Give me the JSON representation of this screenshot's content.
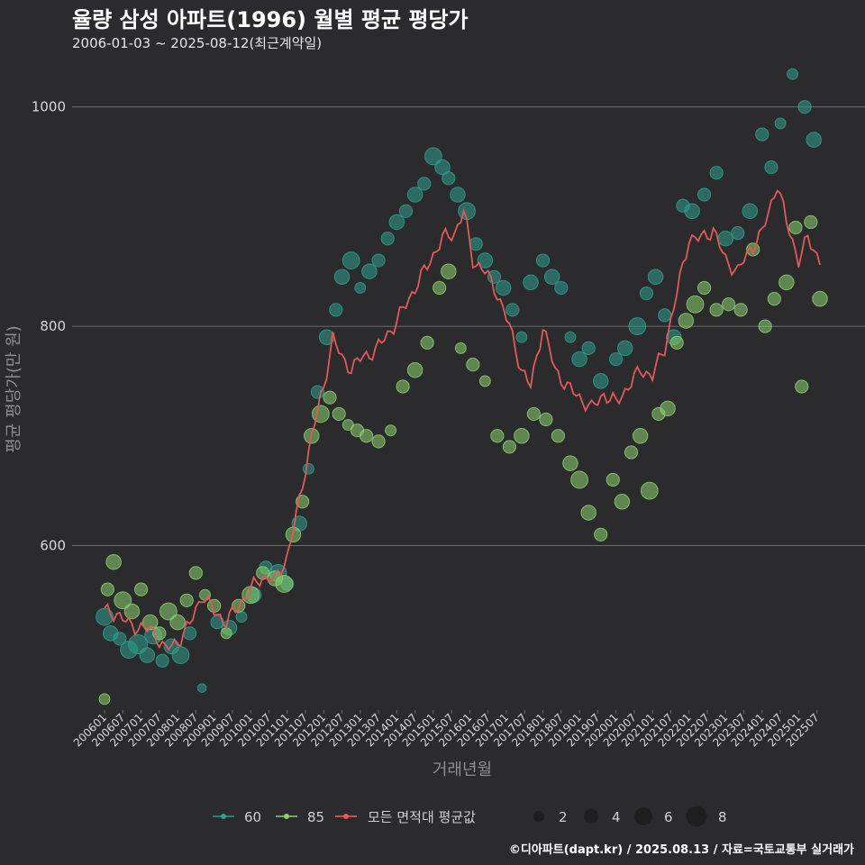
{
  "title": "율량 삼성 아파트(1996) 월별 평균 평당가",
  "subtitle": "2006-01-03 ~ 2025-08-12(최근계약일)",
  "caption": "©디아파트(dapt.kr) / 2025.08.13 / 자료=국토교통부 실거래가",
  "colors": {
    "background": "#2b2b2d",
    "grid": "#6b6b6b",
    "series_60": "#2e9e8e",
    "series_85": "#8ccf6e",
    "avg_line": "#e05a5a",
    "size_legend": "#1e1e1e"
  },
  "chart_data": {
    "type": "scatter",
    "xlabel": "거래년월",
    "ylabel": "평균 평당가(만 원)",
    "ylim": [
      450,
      1040
    ],
    "yticks": [
      600,
      800,
      1000
    ],
    "x_range": [
      "2006-01",
      "2025-08"
    ],
    "xticks": [
      "200601",
      "200607",
      "200701",
      "200707",
      "200801",
      "200807",
      "200901",
      "200907",
      "201001",
      "201007",
      "201101",
      "201107",
      "201201",
      "201207",
      "201301",
      "201307",
      "201401",
      "201407",
      "201501",
      "201507",
      "201601",
      "201607",
      "201701",
      "201707",
      "201801",
      "201807",
      "201901",
      "201907",
      "202001",
      "202007",
      "202101",
      "202107",
      "202201",
      "202207",
      "202301",
      "202307",
      "202401",
      "202407",
      "202501",
      "202507"
    ],
    "grid": true,
    "legend_position": "bottom",
    "legend": {
      "series_labels": [
        "60",
        "85",
        "모든 면적대 평균값"
      ],
      "size_labels": [
        "2",
        "4",
        "6",
        "8"
      ]
    },
    "avg_keypoints": [
      [
        "2006-01",
        540
      ],
      [
        "2006-05",
        538
      ],
      [
        "2006-09",
        528
      ],
      [
        "2007-01",
        525
      ],
      [
        "2007-05",
        522
      ],
      [
        "2007-09",
        505
      ],
      [
        "2008-01",
        512
      ],
      [
        "2008-05",
        528
      ],
      [
        "2008-09",
        555
      ],
      [
        "2009-01",
        540
      ],
      [
        "2009-05",
        530
      ],
      [
        "2009-09",
        545
      ],
      [
        "2010-01",
        560
      ],
      [
        "2010-05",
        572
      ],
      [
        "2010-09",
        568
      ],
      [
        "2011-01",
        590
      ],
      [
        "2011-05",
        640
      ],
      [
        "2011-09",
        700
      ],
      [
        "2012-01",
        745
      ],
      [
        "2012-04",
        790
      ],
      [
        "2012-07",
        770
      ],
      [
        "2012-10",
        762
      ],
      [
        "2013-01",
        770
      ],
      [
        "2013-06",
        778
      ],
      [
        "2013-12",
        800
      ],
      [
        "2014-06",
        830
      ],
      [
        "2014-12",
        860
      ],
      [
        "2015-04",
        880
      ],
      [
        "2015-08",
        885
      ],
      [
        "2015-11",
        905
      ],
      [
        "2016-02",
        860
      ],
      [
        "2016-06",
        850
      ],
      [
        "2016-10",
        830
      ],
      [
        "2017-02",
        800
      ],
      [
        "2017-06",
        760
      ],
      [
        "2017-09",
        745
      ],
      [
        "2018-01",
        800
      ],
      [
        "2018-05",
        760
      ],
      [
        "2018-09",
        745
      ],
      [
        "2019-01",
        735
      ],
      [
        "2019-05",
        725
      ],
      [
        "2019-09",
        738
      ],
      [
        "2020-01",
        730
      ],
      [
        "2020-05",
        745
      ],
      [
        "2020-09",
        760
      ],
      [
        "2021-01",
        755
      ],
      [
        "2021-05",
        780
      ],
      [
        "2021-09",
        830
      ],
      [
        "2022-01",
        880
      ],
      [
        "2022-05",
        880
      ],
      [
        "2022-09",
        888
      ],
      [
        "2023-01",
        860
      ],
      [
        "2023-05",
        850
      ],
      [
        "2023-09",
        870
      ],
      [
        "2024-01",
        885
      ],
      [
        "2024-06",
        930
      ],
      [
        "2024-09",
        895
      ],
      [
        "2025-01",
        860
      ],
      [
        "2025-04",
        880
      ],
      [
        "2025-08",
        860
      ]
    ],
    "series": [
      {
        "name": "60",
        "points": [
          [
            "2006-01",
            535,
            6
          ],
          [
            "2006-03",
            520,
            5
          ],
          [
            "2006-06",
            515,
            4
          ],
          [
            "2006-09",
            505,
            6
          ],
          [
            "2006-12",
            510,
            7
          ],
          [
            "2007-03",
            500,
            5
          ],
          [
            "2007-05",
            518,
            6
          ],
          [
            "2007-08",
            495,
            4
          ],
          [
            "2007-11",
            508,
            5
          ],
          [
            "2008-02",
            500,
            6
          ],
          [
            "2008-05",
            520,
            4
          ],
          [
            "2008-09",
            470,
            2
          ],
          [
            "2009-02",
            530,
            4
          ],
          [
            "2009-06",
            525,
            5
          ],
          [
            "2009-10",
            535,
            3
          ],
          [
            "2010-02",
            555,
            5
          ],
          [
            "2010-06",
            580,
            4
          ],
          [
            "2010-10",
            575,
            6
          ],
          [
            "2011-01",
            565,
            4
          ],
          [
            "2011-05",
            620,
            5
          ],
          [
            "2011-08",
            670,
            3
          ],
          [
            "2011-11",
            740,
            4
          ],
          [
            "2012-02",
            790,
            5
          ],
          [
            "2012-05",
            815,
            4
          ],
          [
            "2012-07",
            845,
            5
          ],
          [
            "2012-10",
            860,
            6
          ],
          [
            "2013-01",
            835,
            3
          ],
          [
            "2013-04",
            850,
            5
          ],
          [
            "2013-07",
            860,
            4
          ],
          [
            "2013-10",
            880,
            4
          ],
          [
            "2014-01",
            895,
            5
          ],
          [
            "2014-04",
            905,
            4
          ],
          [
            "2014-07",
            920,
            5
          ],
          [
            "2014-10",
            930,
            4
          ],
          [
            "2015-01",
            955,
            6
          ],
          [
            "2015-04",
            945,
            5
          ],
          [
            "2015-06",
            935,
            4
          ],
          [
            "2015-09",
            920,
            5
          ],
          [
            "2015-12",
            905,
            6
          ],
          [
            "2016-03",
            875,
            4
          ],
          [
            "2016-06",
            860,
            5
          ],
          [
            "2016-09",
            845,
            4
          ],
          [
            "2016-12",
            835,
            5
          ],
          [
            "2017-03",
            815,
            4
          ],
          [
            "2017-06",
            790,
            3
          ],
          [
            "2017-09",
            840,
            5
          ],
          [
            "2018-01",
            860,
            4
          ],
          [
            "2018-04",
            845,
            5
          ],
          [
            "2018-07",
            835,
            4
          ],
          [
            "2018-10",
            790,
            3
          ],
          [
            "2019-01",
            770,
            5
          ],
          [
            "2019-04",
            780,
            4
          ],
          [
            "2019-08",
            750,
            5
          ],
          [
            "2020-01",
            770,
            4
          ],
          [
            "2020-04",
            780,
            5
          ],
          [
            "2020-08",
            800,
            6
          ],
          [
            "2020-11",
            830,
            4
          ],
          [
            "2021-02",
            845,
            5
          ],
          [
            "2021-05",
            810,
            4
          ],
          [
            "2021-08",
            790,
            5
          ],
          [
            "2021-11",
            910,
            4
          ],
          [
            "2022-02",
            905,
            5
          ],
          [
            "2022-06",
            920,
            4
          ],
          [
            "2022-10",
            940,
            4
          ],
          [
            "2023-01",
            880,
            5
          ],
          [
            "2023-05",
            885,
            4
          ],
          [
            "2023-09",
            905,
            5
          ],
          [
            "2024-01",
            975,
            4
          ],
          [
            "2024-04",
            945,
            4
          ],
          [
            "2024-07",
            985,
            3
          ],
          [
            "2024-11",
            1030,
            3
          ],
          [
            "2025-03",
            1000,
            4
          ],
          [
            "2025-06",
            970,
            5
          ]
        ]
      },
      {
        "name": "85",
        "points": [
          [
            "2006-01",
            460,
            3
          ],
          [
            "2006-02",
            560,
            4
          ],
          [
            "2006-04",
            585,
            5
          ],
          [
            "2006-07",
            550,
            6
          ],
          [
            "2006-10",
            540,
            5
          ],
          [
            "2007-01",
            560,
            4
          ],
          [
            "2007-04",
            530,
            5
          ],
          [
            "2007-07",
            520,
            4
          ],
          [
            "2007-10",
            540,
            6
          ],
          [
            "2008-01",
            530,
            5
          ],
          [
            "2008-04",
            550,
            4
          ],
          [
            "2008-07",
            575,
            4
          ],
          [
            "2008-10",
            555,
            3
          ],
          [
            "2009-01",
            545,
            4
          ],
          [
            "2009-05",
            520,
            3
          ],
          [
            "2009-09",
            545,
            4
          ],
          [
            "2010-01",
            555,
            6
          ],
          [
            "2010-05",
            575,
            4
          ],
          [
            "2010-09",
            570,
            5
          ],
          [
            "2010-12",
            565,
            6
          ],
          [
            "2011-03",
            610,
            5
          ],
          [
            "2011-06",
            640,
            4
          ],
          [
            "2011-09",
            700,
            5
          ],
          [
            "2011-12",
            720,
            6
          ],
          [
            "2012-03",
            735,
            4
          ],
          [
            "2012-06",
            720,
            4
          ],
          [
            "2012-09",
            710,
            3
          ],
          [
            "2012-12",
            705,
            4
          ],
          [
            "2013-03",
            700,
            4
          ],
          [
            "2013-07",
            695,
            4
          ],
          [
            "2013-11",
            705,
            3
          ],
          [
            "2014-03",
            745,
            4
          ],
          [
            "2014-07",
            760,
            5
          ],
          [
            "2014-11",
            785,
            4
          ],
          [
            "2015-03",
            835,
            4
          ],
          [
            "2015-06",
            850,
            5
          ],
          [
            "2015-10",
            780,
            3
          ],
          [
            "2016-02",
            765,
            4
          ],
          [
            "2016-06",
            750,
            3
          ],
          [
            "2016-10",
            700,
            4
          ],
          [
            "2017-02",
            690,
            4
          ],
          [
            "2017-06",
            700,
            5
          ],
          [
            "2017-10",
            720,
            4
          ],
          [
            "2018-02",
            715,
            4
          ],
          [
            "2018-06",
            700,
            4
          ],
          [
            "2018-10",
            675,
            5
          ],
          [
            "2019-01",
            660,
            6
          ],
          [
            "2019-04",
            630,
            5
          ],
          [
            "2019-08",
            610,
            4
          ],
          [
            "2019-12",
            660,
            4
          ],
          [
            "2020-03",
            640,
            5
          ],
          [
            "2020-06",
            685,
            4
          ],
          [
            "2020-09",
            700,
            5
          ],
          [
            "2020-12",
            650,
            6
          ],
          [
            "2021-03",
            720,
            4
          ],
          [
            "2021-06",
            725,
            5
          ],
          [
            "2021-09",
            785,
            4
          ],
          [
            "2021-12",
            805,
            5
          ],
          [
            "2022-03",
            820,
            6
          ],
          [
            "2022-06",
            835,
            4
          ],
          [
            "2022-10",
            815,
            4
          ],
          [
            "2023-02",
            820,
            4
          ],
          [
            "2023-06",
            815,
            4
          ],
          [
            "2023-10",
            870,
            4
          ],
          [
            "2024-02",
            800,
            4
          ],
          [
            "2024-05",
            825,
            4
          ],
          [
            "2024-09",
            840,
            5
          ],
          [
            "2024-12",
            890,
            4
          ],
          [
            "2025-02",
            745,
            4
          ],
          [
            "2025-05",
            895,
            4
          ],
          [
            "2025-08",
            825,
            5
          ]
        ]
      }
    ]
  }
}
